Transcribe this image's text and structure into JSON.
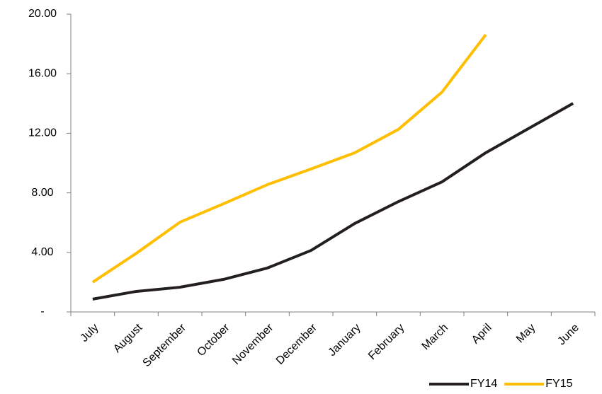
{
  "chart_data": {
    "type": "line",
    "categories": [
      "July",
      "August",
      "September",
      "October",
      "November",
      "December",
      "January",
      "February",
      "March",
      "April",
      "May",
      "June"
    ],
    "series": [
      {
        "name": "FY14",
        "color": "#231f20",
        "values": [
          0.86,
          1.38,
          1.66,
          2.19,
          2.95,
          4.13,
          5.94,
          7.41,
          8.74,
          10.69,
          12.35,
          14.01
        ]
      },
      {
        "name": "FY15",
        "color": "#ffbf00",
        "values": [
          2.0,
          3.94,
          6.03,
          7.27,
          8.55,
          9.6,
          10.69,
          12.26,
          14.77,
          18.62,
          null,
          null
        ]
      }
    ],
    "ylim": [
      0,
      20
    ],
    "yticks": [
      {
        "value": 0,
        "label": "-"
      },
      {
        "value": 4,
        "label": "4.00"
      },
      {
        "value": 8,
        "label": "8.00"
      },
      {
        "value": 12,
        "label": "12.00"
      },
      {
        "value": 16,
        "label": "16.00"
      },
      {
        "value": 20,
        "label": "20.00"
      }
    ],
    "grid": false,
    "legend": "bottom-right"
  }
}
